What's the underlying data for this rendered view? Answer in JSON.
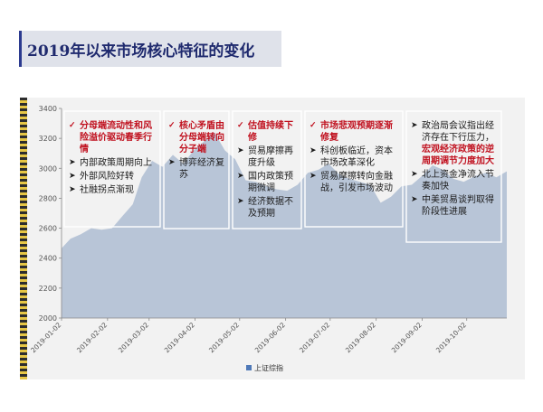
{
  "title": "2019年以来市场核心特征的变化",
  "chart_data": {
    "type": "area",
    "series_name": "上证综指",
    "color": "#b8c5d7",
    "ylim": [
      2000,
      3400
    ],
    "yticks": [
      2000,
      2200,
      2400,
      2600,
      2800,
      3000,
      3200,
      3400
    ],
    "xticks": [
      "2019-01-02",
      "2019-02-02",
      "2019-03-02",
      "2019-04-02",
      "2019-05-02",
      "2019-06-02",
      "2019-07-02",
      "2019-08-02",
      "2019-09-02",
      "2019-10-02"
    ],
    "legend_position": "bottom",
    "x": [
      "2019-01-02",
      "2019-01-08",
      "2019-01-15",
      "2019-01-22",
      "2019-01-29",
      "2019-02-05",
      "2019-02-12",
      "2019-02-19",
      "2019-02-25",
      "2019-03-04",
      "2019-03-11",
      "2019-03-18",
      "2019-03-25",
      "2019-04-01",
      "2019-04-08",
      "2019-04-15",
      "2019-04-22",
      "2019-04-29",
      "2019-05-06",
      "2019-05-13",
      "2019-05-20",
      "2019-05-27",
      "2019-06-03",
      "2019-06-10",
      "2019-06-17",
      "2019-06-24",
      "2019-07-01",
      "2019-07-08",
      "2019-07-15",
      "2019-07-22",
      "2019-07-29",
      "2019-08-05",
      "2019-08-12",
      "2019-08-19",
      "2019-08-26",
      "2019-09-02",
      "2019-09-09",
      "2019-09-16",
      "2019-09-23",
      "2019-09-30",
      "2019-10-08",
      "2019-10-15",
      "2019-10-22",
      "2019-10-29"
    ],
    "values": [
      2465,
      2530,
      2560,
      2600,
      2590,
      2600,
      2680,
      2760,
      2940,
      3050,
      3010,
      3090,
      3030,
      3120,
      3180,
      3240,
      3120,
      3060,
      2920,
      2910,
      2880,
      2860,
      2850,
      2890,
      2970,
      2990,
      3030,
      2960,
      2930,
      2910,
      2890,
      2770,
      2810,
      2880,
      2890,
      2950,
      3020,
      2990,
      2930,
      2910,
      2950,
      2970,
      2940,
      2980
    ]
  },
  "panels": [
    {
      "bullets": [
        {
          "style": "red",
          "text": "分母端流动性和风险溢价驱动春季行情"
        },
        {
          "style": "plain",
          "text": "内部政策周期向上"
        },
        {
          "style": "plain",
          "text": "外部风险好转"
        },
        {
          "style": "plain",
          "text": "社融拐点渐现"
        }
      ]
    },
    {
      "bullets": [
        {
          "style": "red",
          "text": "核心矛盾由分母端转向分子端"
        },
        {
          "style": "plain",
          "text": "博弈经济复苏"
        }
      ]
    },
    {
      "bullets": [
        {
          "style": "red",
          "text": "估值持续下修"
        },
        {
          "style": "plain",
          "text": "贸易摩擦再度升级"
        },
        {
          "style": "plain",
          "text": "国内政策预期微调"
        },
        {
          "style": "plain",
          "text": "经济数据不及预期"
        }
      ]
    },
    {
      "bullets": [
        {
          "style": "red",
          "text": "市场悲观预期逐渐修复"
        },
        {
          "style": "plain",
          "text": "科创板临近，资本市场改革深化"
        },
        {
          "style": "plain",
          "text": "贸易摩擦转向金融战，引发市场波动"
        }
      ]
    },
    {
      "bullets": [
        {
          "style": "plain",
          "text": "政治局会议指出经济存在下行压力，",
          "emphasis": "宏观经济政策的逆周期调节力度加大"
        },
        {
          "style": "plain",
          "text": "北上资金净流入节奏加快"
        },
        {
          "style": "plain",
          "text": "中美贸易谈判取得阶段性进展"
        }
      ]
    }
  ]
}
